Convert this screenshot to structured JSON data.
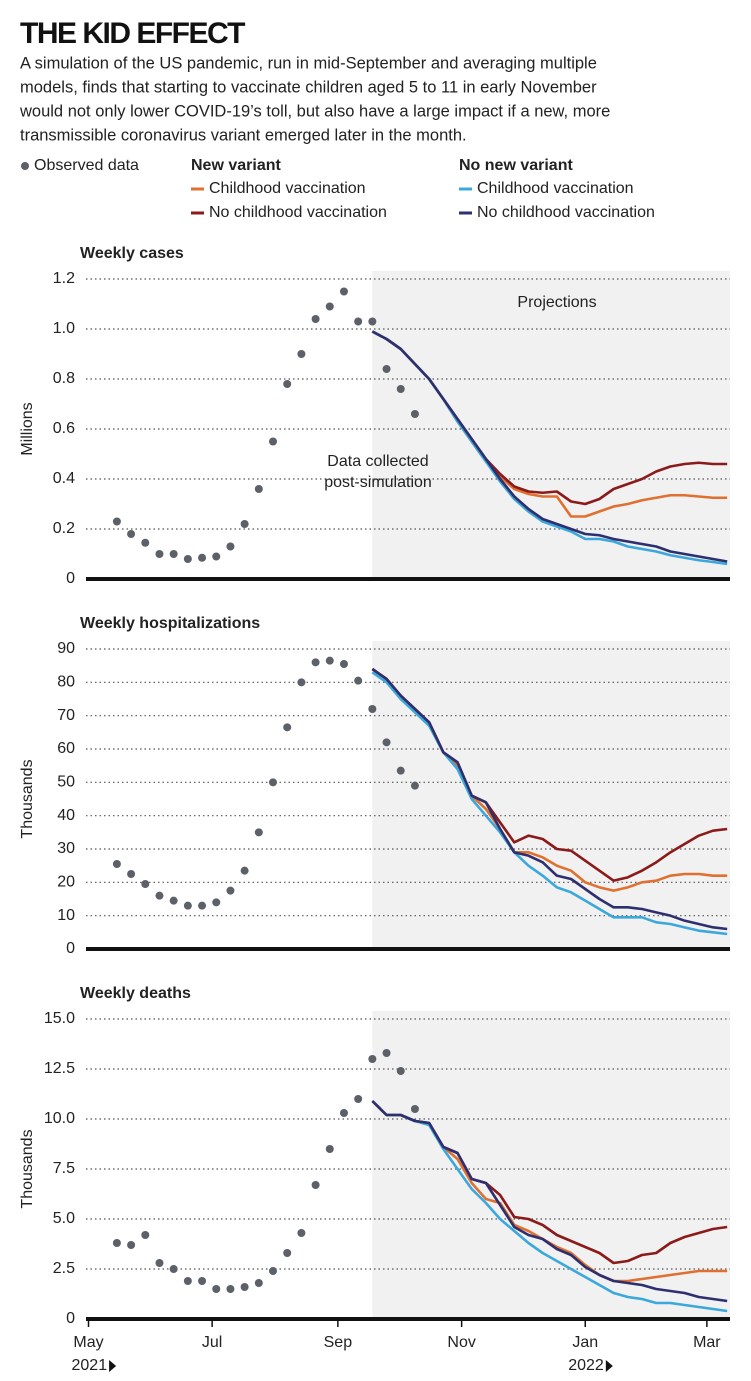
{
  "title": "THE KID EFFECT",
  "subtitle": [
    "A simulation of the US pandemic, run in mid-September and averaging multiple",
    "models, finds that starting to vaccinate children aged 5 to 11 in early November",
    "would not only lower COVID-19’s toll, but also have a large impact if a new, more",
    "transmissible coronavirus variant emerged later in the month."
  ],
  "legend_groups": [
    "New variant",
    "No new variant"
  ],
  "chart_data": [
    {
      "type": "line",
      "title": "Weekly cases",
      "y_label": "Millions",
      "projection_label": "Projections",
      "annotation": [
        "Data collected",
        "post-simulation"
      ],
      "xlim": [
        -0.6,
        45.2
      ],
      "ylim": [
        0,
        1.2
      ],
      "yticks": [
        0,
        0.2,
        0.4,
        0.6,
        0.8,
        {
          "value": 1,
          "label": "1.0"
        },
        1.2
      ],
      "grid": true,
      "series": [
        {
          "name": "Observed data",
          "style": "dots",
          "color": "#5c6068",
          "x": [
            2,
            3,
            4,
            5,
            6,
            7,
            8,
            9,
            10,
            11,
            12,
            13,
            14,
            15,
            16,
            17,
            18,
            19,
            20,
            21,
            22,
            23
          ],
          "values": [
            0.23,
            0.18,
            0.145,
            0.1,
            0.1,
            0.08,
            0.085,
            0.09,
            0.13,
            0.22,
            0.36,
            0.55,
            0.78,
            0.9,
            1.04,
            1.09,
            1.15,
            1.03,
            1.03,
            0.84,
            0.76,
            0.66
          ]
        },
        {
          "name": "Childhood vaccination",
          "color": "#e07030",
          "x": [
            20,
            21,
            22,
            23,
            24,
            25,
            26,
            27,
            28,
            29,
            30,
            31,
            32,
            33,
            34,
            35,
            36,
            37,
            38,
            39,
            40,
            41,
            42,
            43,
            44,
            45
          ],
          "values": [
            0.99,
            0.96,
            0.92,
            0.86,
            0.8,
            0.72,
            0.63,
            0.55,
            0.47,
            0.41,
            0.36,
            0.34,
            0.33,
            0.33,
            0.25,
            0.25,
            0.27,
            0.29,
            0.3,
            0.315,
            0.325,
            0.335,
            0.335,
            0.33,
            0.325,
            0.325
          ]
        },
        {
          "name": "No childhood vaccination",
          "color": "#8b1a1a",
          "x": [
            20,
            21,
            22,
            23,
            24,
            25,
            26,
            27,
            28,
            29,
            30,
            31,
            32,
            33,
            34,
            35,
            36,
            37,
            38,
            39,
            40,
            41,
            42,
            43,
            44,
            45
          ],
          "values": [
            0.99,
            0.96,
            0.92,
            0.86,
            0.8,
            0.72,
            0.64,
            0.56,
            0.48,
            0.42,
            0.37,
            0.35,
            0.345,
            0.35,
            0.31,
            0.3,
            0.32,
            0.36,
            0.38,
            0.4,
            0.43,
            0.45,
            0.46,
            0.465,
            0.46,
            0.46
          ]
        },
        {
          "name": "Childhood vaccination",
          "color": "#3ba8dc",
          "x": [
            20,
            21,
            22,
            23,
            24,
            25,
            26,
            27,
            28,
            29,
            30,
            31,
            32,
            33,
            34,
            35,
            36,
            37,
            38,
            39,
            40,
            41,
            42,
            43,
            44,
            45
          ],
          "values": [
            0.99,
            0.96,
            0.92,
            0.86,
            0.8,
            0.72,
            0.63,
            0.55,
            0.47,
            0.39,
            0.32,
            0.27,
            0.23,
            0.21,
            0.19,
            0.16,
            0.16,
            0.15,
            0.13,
            0.12,
            0.11,
            0.095,
            0.085,
            0.075,
            0.068,
            0.06
          ]
        },
        {
          "name": "No childhood vaccination",
          "color": "#2d2f6e",
          "x": [
            20,
            21,
            22,
            23,
            24,
            25,
            26,
            27,
            28,
            29,
            30,
            31,
            32,
            33,
            34,
            35,
            36,
            37,
            38,
            39,
            40,
            41,
            42,
            43,
            44,
            45
          ],
          "values": [
            0.99,
            0.96,
            0.92,
            0.86,
            0.8,
            0.72,
            0.64,
            0.56,
            0.48,
            0.4,
            0.33,
            0.28,
            0.24,
            0.22,
            0.2,
            0.18,
            0.175,
            0.16,
            0.15,
            0.14,
            0.13,
            0.11,
            0.1,
            0.09,
            0.08,
            0.07
          ]
        }
      ]
    },
    {
      "type": "line",
      "title": "Weekly hospitalizations",
      "y_label": "Thousands",
      "xlim": [
        -0.6,
        45.2
      ],
      "ylim": [
        0,
        90
      ],
      "yticks": [
        0,
        10,
        20,
        30,
        40,
        50,
        60,
        70,
        80,
        90
      ],
      "grid": true,
      "series": [
        {
          "style": "dots",
          "color": "#5c6068",
          "x": [
            2,
            3,
            4,
            5,
            6,
            7,
            8,
            9,
            10,
            11,
            12,
            13,
            14,
            15,
            16,
            17,
            18,
            19,
            20,
            21,
            22,
            23
          ],
          "values": [
            25.5,
            22.5,
            19.5,
            16,
            14.5,
            13,
            13,
            14,
            17.5,
            23.5,
            35,
            50,
            66.5,
            80,
            86,
            86.5,
            85.5,
            80.5,
            72,
            62,
            53.5,
            49
          ]
        },
        {
          "color": "#e07030",
          "x": [
            20,
            21,
            22,
            23,
            24,
            25,
            26,
            27,
            28,
            29,
            30,
            31,
            32,
            33,
            34,
            35,
            36,
            37,
            38,
            39,
            40,
            41,
            42,
            43,
            44,
            45
          ],
          "values": [
            84,
            81,
            76,
            72,
            68,
            59,
            55,
            46,
            42,
            36,
            29,
            29,
            27.5,
            25,
            23.5,
            20,
            18.5,
            17.5,
            18.5,
            20,
            20.5,
            22,
            22.5,
            22.5,
            22,
            22
          ]
        },
        {
          "color": "#8b1a1a",
          "x": [
            20,
            21,
            22,
            23,
            24,
            25,
            26,
            27,
            28,
            29,
            30,
            31,
            32,
            33,
            34,
            35,
            36,
            37,
            38,
            39,
            40,
            41,
            42,
            43,
            44,
            45
          ],
          "values": [
            84,
            81,
            76,
            72,
            68,
            59,
            56,
            46,
            44,
            38,
            32,
            34,
            33,
            30,
            29.5,
            26.5,
            23.5,
            20.5,
            21.5,
            23.5,
            26,
            29,
            31.5,
            34,
            35.5,
            36
          ]
        },
        {
          "color": "#3ba8dc",
          "x": [
            20,
            21,
            22,
            23,
            24,
            25,
            26,
            27,
            28,
            29,
            30,
            31,
            32,
            33,
            34,
            35,
            36,
            37,
            38,
            39,
            40,
            41,
            42,
            43,
            44,
            45
          ],
          "values": [
            83,
            80,
            75,
            71,
            67,
            59,
            54,
            45,
            40,
            35,
            29,
            25,
            22,
            18.5,
            17,
            14.5,
            12,
            9.5,
            9.5,
            9.5,
            8,
            7.5,
            6.5,
            5.5,
            5,
            4.5
          ]
        },
        {
          "color": "#2d2f6e",
          "x": [
            20,
            21,
            22,
            23,
            24,
            25,
            26,
            27,
            28,
            29,
            30,
            31,
            32,
            33,
            34,
            35,
            36,
            37,
            38,
            39,
            40,
            41,
            42,
            43,
            44,
            45
          ],
          "values": [
            84,
            81,
            76,
            72,
            68,
            59,
            56,
            46,
            44,
            36,
            29,
            28,
            26,
            22,
            21,
            18,
            15,
            12.5,
            12.5,
            12,
            11,
            10,
            8.5,
            7.5,
            6.5,
            6
          ]
        }
      ]
    },
    {
      "type": "line",
      "title": "Weekly deaths",
      "y_label": "Thousands",
      "xlim": [
        -0.6,
        45.2
      ],
      "ylim": [
        0,
        15
      ],
      "yticks": [
        0,
        2.5,
        {
          "value": 5,
          "label": "5.0"
        },
        7.5,
        {
          "value": 10,
          "label": "10.0"
        },
        12.5,
        {
          "value": 15,
          "label": "15.0"
        }
      ],
      "grid": true,
      "xticks": [
        {
          "value": 0,
          "label": "May"
        },
        {
          "value": 8.71,
          "label": "Jul"
        },
        {
          "value": 17.57,
          "label": "Sep"
        },
        {
          "value": 26.29,
          "label": "Nov"
        },
        {
          "value": 35.0,
          "label": "Jan"
        },
        {
          "value": 43.57,
          "label": "Mar"
        }
      ],
      "x_sublabels": [
        {
          "value": 0,
          "label": "2021"
        },
        {
          "value": 35.0,
          "label": "2022"
        }
      ],
      "series": [
        {
          "style": "dots",
          "color": "#5c6068",
          "x": [
            2,
            3,
            4,
            5,
            6,
            7,
            8,
            9,
            10,
            11,
            12,
            13,
            14,
            15,
            16,
            17,
            18,
            19,
            20,
            21,
            22,
            23
          ],
          "values": [
            3.8,
            3.7,
            4.2,
            2.8,
            2.5,
            1.9,
            1.9,
            1.5,
            1.5,
            1.6,
            1.8,
            2.4,
            3.3,
            4.3,
            6.7,
            8.5,
            10.3,
            11.0,
            13.0,
            13.3,
            12.4,
            10.5
          ]
        },
        {
          "color": "#e07030",
          "x": [
            20,
            21,
            22,
            23,
            24,
            25,
            26,
            27,
            28,
            29,
            30,
            31,
            32,
            33,
            34,
            35,
            36,
            37,
            38,
            39,
            40,
            41,
            42,
            43,
            44,
            45
          ],
          "values": [
            10.9,
            10.2,
            10.2,
            9.9,
            9.8,
            8.6,
            8.0,
            6.8,
            6.0,
            5.8,
            4.7,
            4.4,
            4.0,
            3.6,
            3.3,
            2.7,
            2.2,
            1.9,
            1.9,
            2.0,
            2.1,
            2.2,
            2.3,
            2.4,
            2.4,
            2.4
          ]
        },
        {
          "color": "#8b1a1a",
          "x": [
            20,
            21,
            22,
            23,
            24,
            25,
            26,
            27,
            28,
            29,
            30,
            31,
            32,
            33,
            34,
            35,
            36,
            37,
            38,
            39,
            40,
            41,
            42,
            43,
            44,
            45
          ],
          "values": [
            10.9,
            10.2,
            10.2,
            9.9,
            9.8,
            8.6,
            8.3,
            7.0,
            6.8,
            6.2,
            5.1,
            5.0,
            4.7,
            4.2,
            3.9,
            3.6,
            3.3,
            2.8,
            2.9,
            3.2,
            3.3,
            3.8,
            4.1,
            4.3,
            4.5,
            4.6
          ]
        },
        {
          "color": "#3ba8dc",
          "x": [
            20,
            21,
            22,
            23,
            24,
            25,
            26,
            27,
            28,
            29,
            30,
            31,
            32,
            33,
            34,
            35,
            36,
            37,
            38,
            39,
            40,
            41,
            42,
            43,
            44,
            45
          ],
          "values": [
            10.9,
            10.2,
            10.2,
            9.9,
            9.7,
            8.5,
            7.5,
            6.5,
            5.8,
            5.0,
            4.4,
            3.8,
            3.3,
            2.9,
            2.5,
            2.1,
            1.7,
            1.3,
            1.1,
            1.0,
            0.8,
            0.8,
            0.7,
            0.6,
            0.5,
            0.4
          ]
        },
        {
          "color": "#2d2f6e",
          "x": [
            20,
            21,
            22,
            23,
            24,
            25,
            26,
            27,
            28,
            29,
            30,
            31,
            32,
            33,
            34,
            35,
            36,
            37,
            38,
            39,
            40,
            41,
            42,
            43,
            44,
            45
          ],
          "values": [
            10.9,
            10.2,
            10.2,
            9.9,
            9.8,
            8.6,
            8.3,
            7.0,
            6.8,
            5.7,
            4.6,
            4.2,
            4.0,
            3.5,
            3.2,
            2.6,
            2.2,
            1.9,
            1.8,
            1.7,
            1.5,
            1.4,
            1.3,
            1.1,
            1.0,
            0.9
          ]
        }
      ]
    }
  ]
}
